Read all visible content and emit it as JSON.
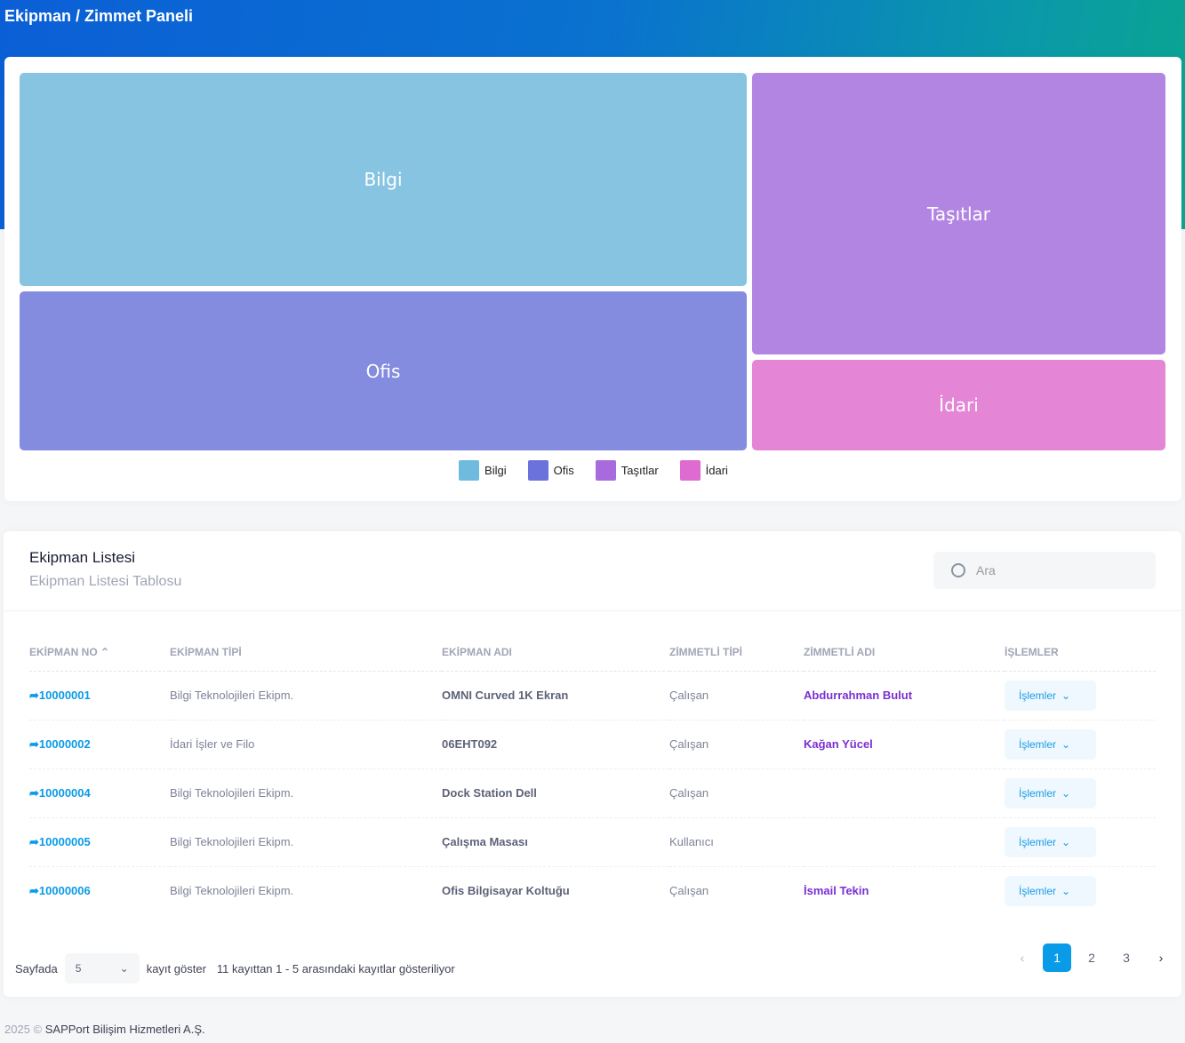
{
  "header": {
    "title": "Ekipman / Zimmet Paneli"
  },
  "chart_data": {
    "type": "treemap",
    "categories": [
      "Bilgi",
      "Ofis",
      "Taşıtlar",
      "İdari"
    ],
    "relative_share_pct": [
      36.6,
      27.2,
      27.5,
      8.8
    ],
    "colors": [
      "#87c4e2",
      "#848cdf",
      "#b385e2",
      "#e485d6"
    ],
    "legend": "bottom"
  },
  "list": {
    "title": "Ekipman Listesi",
    "subtitle": "Ekipman Listesi Tablosu",
    "search_placeholder": "Ara",
    "columns": [
      "EKİPMAN NO",
      "EKİPMAN TİPİ",
      "EKİPMAN ADI",
      "ZİMMETLİ TİPİ",
      "ZİMMETLİ ADI",
      "İŞLEMLER"
    ],
    "rows": [
      {
        "no": "10000001",
        "tip": "Bilgi Teknolojileri Ekipm.",
        "ad": "OMNI Curved 1K Ekran",
        "ztip": "Çalışan",
        "zad": "Abdurrahman Bulut",
        "action": "İşlemler"
      },
      {
        "no": "10000002",
        "tip": "İdari İşler ve Filo",
        "ad": "06EHT092",
        "ztip": "Çalışan",
        "zad": "Kağan Yücel",
        "action": "İşlemler"
      },
      {
        "no": "10000004",
        "tip": "Bilgi Teknolojileri Ekipm.",
        "ad": "Dock Station Dell",
        "ztip": "Çalışan",
        "zad": "",
        "action": "İşlemler"
      },
      {
        "no": "10000005",
        "tip": "Bilgi Teknolojileri Ekipm.",
        "ad": "Çalışma Masası",
        "ztip": "Kullanıcı",
        "zad": "",
        "action": "İşlemler"
      },
      {
        "no": "10000006",
        "tip": "Bilgi Teknolojileri Ekipm.",
        "ad": "Ofis Bilgisayar Koltuğu",
        "ztip": "Çalışan",
        "zad": "İsmail Tekin",
        "action": "İşlemler"
      }
    ]
  },
  "pagination": {
    "label_before": "Sayfada",
    "page_size": "5",
    "label_after": "kayıt göster",
    "info": "11 kayıttan 1 - 5 arasındaki kayıtlar gösteriliyor",
    "pages": [
      "1",
      "2",
      "3"
    ],
    "current": "1"
  },
  "footer": {
    "year": "2025 ©",
    "company": "SAPPort Bilişim Hizmetleri A.Ş."
  }
}
